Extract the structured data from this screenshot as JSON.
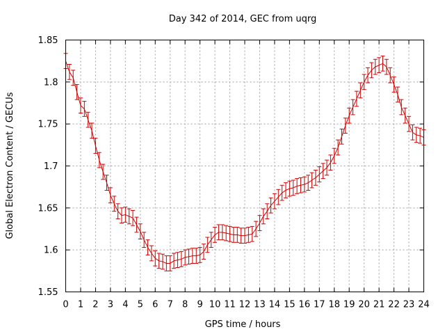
{
  "chart_data": {
    "type": "line",
    "title": "Day 342 of 2014, GEC from uqrg",
    "xlabel": "GPS time / hours",
    "ylabel": "Global Electron Content / GECUs",
    "xlim": [
      0,
      24
    ],
    "ylim": [
      1.55,
      1.85
    ],
    "xticks": [
      "0",
      "1",
      "2",
      "3",
      "4",
      "5",
      "6",
      "7",
      "8",
      "9",
      "10",
      "11",
      "12",
      "13",
      "14",
      "15",
      "16",
      "17",
      "18",
      "19",
      "20",
      "21",
      "22",
      "23",
      "24"
    ],
    "yticks": [
      "1.55",
      "1.6",
      "1.65",
      "1.7",
      "1.75",
      "1.8",
      "1.85"
    ],
    "grid": true,
    "color": "#cc0000",
    "error": 0.009,
    "series": [
      {
        "x": [
          0,
          0.25,
          0.5,
          0.75,
          1,
          1.25,
          1.5,
          1.75,
          2,
          2.25,
          2.5,
          2.75,
          3,
          3.25,
          3.5,
          3.75,
          4,
          4.25,
          4.5,
          4.75,
          5,
          5.25,
          5.5,
          5.75,
          6,
          6.25,
          6.5,
          6.75,
          7,
          7.25,
          7.5,
          7.75,
          8,
          8.25,
          8.5,
          8.75,
          9,
          9.25,
          9.5,
          9.75,
          10,
          10.25,
          10.5,
          10.75,
          11,
          11.25,
          11.5,
          11.75,
          12,
          12.25,
          12.5,
          12.75,
          13,
          13.25,
          13.5,
          13.75,
          14,
          14.25,
          14.5,
          14.75,
          15,
          15.25,
          15.5,
          15.75,
          16,
          16.25,
          16.5,
          16.75,
          17,
          17.25,
          17.5,
          17.75,
          18,
          18.25,
          18.5,
          18.75,
          19,
          19.25,
          19.5,
          19.75,
          20,
          20.25,
          20.5,
          20.75,
          21,
          21.25,
          21.5,
          21.75,
          22,
          22.25,
          22.5,
          22.75,
          23,
          23.25,
          23.5,
          23.75,
          24
        ],
        "values": [
          1.825,
          1.812,
          1.805,
          1.788,
          1.772,
          1.768,
          1.755,
          1.742,
          1.724,
          1.707,
          1.693,
          1.68,
          1.665,
          1.655,
          1.646,
          1.641,
          1.642,
          1.64,
          1.638,
          1.63,
          1.622,
          1.612,
          1.603,
          1.596,
          1.59,
          1.587,
          1.586,
          1.584,
          1.584,
          1.587,
          1.588,
          1.589,
          1.591,
          1.592,
          1.593,
          1.593,
          1.594,
          1.598,
          1.606,
          1.612,
          1.618,
          1.621,
          1.621,
          1.62,
          1.619,
          1.618,
          1.618,
          1.617,
          1.617,
          1.618,
          1.619,
          1.625,
          1.632,
          1.64,
          1.646,
          1.653,
          1.658,
          1.663,
          1.668,
          1.671,
          1.673,
          1.674,
          1.676,
          1.677,
          1.678,
          1.68,
          1.683,
          1.686,
          1.69,
          1.694,
          1.698,
          1.704,
          1.712,
          1.722,
          1.735,
          1.748,
          1.76,
          1.77,
          1.78,
          1.79,
          1.8,
          1.808,
          1.814,
          1.818,
          1.82,
          1.822,
          1.818,
          1.808,
          1.797,
          1.785,
          1.77,
          1.76,
          1.75,
          1.74,
          1.737,
          1.736,
          1.734
        ]
      }
    ]
  }
}
